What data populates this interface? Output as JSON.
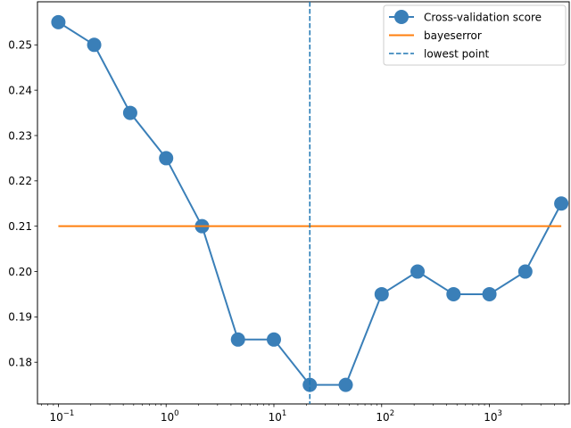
{
  "chart_data": {
    "type": "line",
    "x_scale": "log",
    "xlim": [
      0.064,
      5500
    ],
    "ylim": [
      0.1708,
      0.2595
    ],
    "x_ticks": [
      {
        "value": 0.1,
        "base": "10",
        "exp": "−1"
      },
      {
        "value": 1,
        "base": "10",
        "exp": "0"
      },
      {
        "value": 10,
        "base": "10",
        "exp": "1"
      },
      {
        "value": 100,
        "base": "10",
        "exp": "2"
      },
      {
        "value": 1000,
        "base": "10",
        "exp": "3"
      }
    ],
    "y_ticks": [
      {
        "value": 0.18,
        "label": "0.18"
      },
      {
        "value": 0.19,
        "label": "0.19"
      },
      {
        "value": 0.2,
        "label": "0.20"
      },
      {
        "value": 0.21,
        "label": "0.21"
      },
      {
        "value": 0.22,
        "label": "0.22"
      },
      {
        "value": 0.23,
        "label": "0.23"
      },
      {
        "value": 0.24,
        "label": "0.24"
      },
      {
        "value": 0.25,
        "label": "0.25"
      }
    ],
    "series": [
      {
        "name": "Cross-validation score",
        "color": "#3a7fb8",
        "style": "line-markers",
        "x": [
          0.1,
          0.215,
          0.464,
          1.0,
          2.154,
          4.642,
          10.0,
          21.54,
          46.42,
          100.0,
          215.4,
          464.2,
          1000.0,
          2154.0,
          4642.0
        ],
        "y": [
          0.255,
          0.25,
          0.235,
          0.225,
          0.21,
          0.185,
          0.185,
          0.175,
          0.175,
          0.195,
          0.2,
          0.195,
          0.195,
          0.2,
          0.215
        ]
      },
      {
        "name": "bayeserror",
        "color": "#ff7f0e",
        "style": "hline",
        "x": [
          0.1,
          4642.0
        ],
        "y": [
          0.21,
          0.21
        ]
      },
      {
        "name": "lowest point",
        "color": "#1f77b4",
        "style": "vline-dashed",
        "x": [
          21.54
        ]
      }
    ],
    "legend": {
      "position": "top-right"
    }
  }
}
